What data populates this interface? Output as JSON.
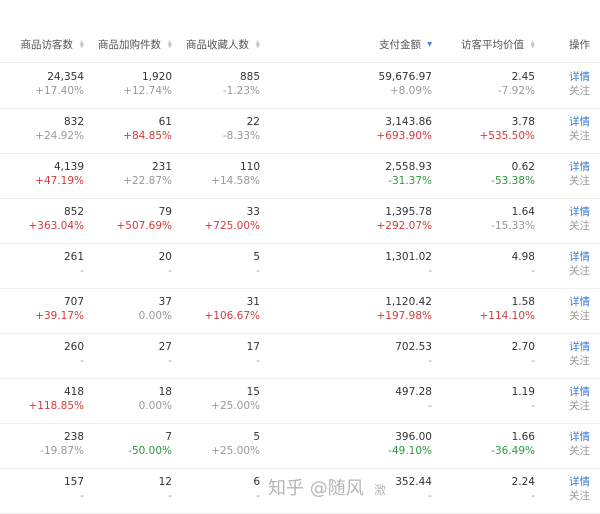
{
  "header": {
    "columns": [
      "商品访客数",
      "商品加购件数",
      "商品收藏人数",
      "支付金额",
      "访客平均价值",
      "操作"
    ],
    "sorted_column": "支付金额",
    "sorted_direction": "descending"
  },
  "actions": {
    "detail": "详情",
    "follow": "关注"
  },
  "colors": {
    "positive_highlight": "#d23b3b",
    "negative_highlight": "#2e9a3b",
    "link": "#3a7bd5"
  },
  "rows": [
    {
      "cells": [
        {
          "value": "24,354",
          "change": "+17.40%",
          "tone": "neutral"
        },
        {
          "value": "1,920",
          "change": "+12.74%",
          "tone": "neutral"
        },
        {
          "value": "885",
          "change": "-1.23%",
          "tone": "neutral"
        },
        {
          "value": "59,676.97",
          "change": "+8.09%",
          "tone": "neutral"
        },
        {
          "value": "2.45",
          "change": "-7.92%",
          "tone": "neutral"
        }
      ]
    },
    {
      "cells": [
        {
          "value": "832",
          "change": "+24.92%",
          "tone": "neutral"
        },
        {
          "value": "61",
          "change": "+84.85%",
          "tone": "red"
        },
        {
          "value": "22",
          "change": "-8.33%",
          "tone": "neutral"
        },
        {
          "value": "3,143.86",
          "change": "+693.90%",
          "tone": "red"
        },
        {
          "value": "3.78",
          "change": "+535.50%",
          "tone": "red"
        }
      ]
    },
    {
      "cells": [
        {
          "value": "4,139",
          "change": "+47.19%",
          "tone": "red"
        },
        {
          "value": "231",
          "change": "+22.87%",
          "tone": "neutral"
        },
        {
          "value": "110",
          "change": "+14.58%",
          "tone": "neutral"
        },
        {
          "value": "2,558.93",
          "change": "-31.37%",
          "tone": "green"
        },
        {
          "value": "0.62",
          "change": "-53.38%",
          "tone": "green"
        }
      ]
    },
    {
      "cells": [
        {
          "value": "852",
          "change": "+363.04%",
          "tone": "red"
        },
        {
          "value": "79",
          "change": "+507.69%",
          "tone": "red"
        },
        {
          "value": "33",
          "change": "+725.00%",
          "tone": "red"
        },
        {
          "value": "1,395.78",
          "change": "+292.07%",
          "tone": "red"
        },
        {
          "value": "1.64",
          "change": "-15.33%",
          "tone": "neutral"
        }
      ]
    },
    {
      "cells": [
        {
          "value": "261",
          "change": "-",
          "tone": "neutral"
        },
        {
          "value": "20",
          "change": "-",
          "tone": "neutral"
        },
        {
          "value": "5",
          "change": "-",
          "tone": "neutral"
        },
        {
          "value": "1,301.02",
          "change": "-",
          "tone": "neutral"
        },
        {
          "value": "4.98",
          "change": "-",
          "tone": "neutral"
        }
      ]
    },
    {
      "cells": [
        {
          "value": "707",
          "change": "+39.17%",
          "tone": "red"
        },
        {
          "value": "37",
          "change": "0.00%",
          "tone": "neutral"
        },
        {
          "value": "31",
          "change": "+106.67%",
          "tone": "red"
        },
        {
          "value": "1,120.42",
          "change": "+197.98%",
          "tone": "red"
        },
        {
          "value": "1.58",
          "change": "+114.10%",
          "tone": "red"
        }
      ]
    },
    {
      "cells": [
        {
          "value": "260",
          "change": "-",
          "tone": "neutral"
        },
        {
          "value": "27",
          "change": "-",
          "tone": "neutral"
        },
        {
          "value": "17",
          "change": "-",
          "tone": "neutral"
        },
        {
          "value": "702.53",
          "change": "-",
          "tone": "neutral"
        },
        {
          "value": "2.70",
          "change": "-",
          "tone": "neutral"
        }
      ]
    },
    {
      "cells": [
        {
          "value": "418",
          "change": "+118.85%",
          "tone": "red"
        },
        {
          "value": "18",
          "change": "0.00%",
          "tone": "neutral"
        },
        {
          "value": "15",
          "change": "+25.00%",
          "tone": "neutral"
        },
        {
          "value": "497.28",
          "change": "-",
          "tone": "neutral"
        },
        {
          "value": "1.19",
          "change": "-",
          "tone": "neutral"
        }
      ]
    },
    {
      "cells": [
        {
          "value": "238",
          "change": "-19.87%",
          "tone": "neutral"
        },
        {
          "value": "7",
          "change": "-50.00%",
          "tone": "green"
        },
        {
          "value": "5",
          "change": "+25.00%",
          "tone": "neutral"
        },
        {
          "value": "396.00",
          "change": "-49.10%",
          "tone": "green"
        },
        {
          "value": "1.66",
          "change": "-36.49%",
          "tone": "green"
        }
      ]
    },
    {
      "cells": [
        {
          "value": "157",
          "change": "-",
          "tone": "neutral"
        },
        {
          "value": "12",
          "change": "-",
          "tone": "neutral"
        },
        {
          "value": "6",
          "change": "-",
          "tone": "neutral"
        },
        {
          "value": "352.44",
          "change": "-",
          "tone": "neutral"
        },
        {
          "value": "2.24",
          "change": "-",
          "tone": "neutral"
        }
      ]
    }
  ],
  "watermark": "知乎 @随风",
  "watermark_fragment": "激"
}
